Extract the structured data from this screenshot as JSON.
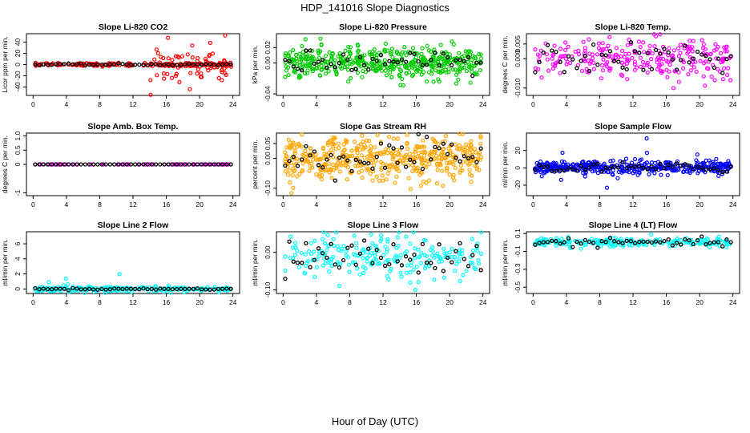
{
  "title": "HDP_141016  Slope Diagnostics",
  "xlabel": "Hour of Day (UTC)",
  "chart_data": [
    {
      "type": "scatter",
      "title": "Slope Li-820 CO2",
      "ylabel": "Licor ppm per min.",
      "yticks": [
        {
          "v": -40,
          "t": "-40"
        },
        {
          "v": -20,
          "t": "-20"
        },
        {
          "v": 0,
          "t": "0"
        },
        {
          "v": 20,
          "t": "20"
        },
        {
          "v": 40,
          "t": "40"
        }
      ],
      "ylim": [
        -55,
        55
      ],
      "color": "#ff0000",
      "center": 0,
      "sd": 1.5,
      "density": 2,
      "spikes": {
        "start": 14,
        "amp": 30,
        "n": 70
      },
      "overlay": {
        "center": 0,
        "sd": 0.8
      }
    },
    {
      "type": "scatter",
      "title": "Slope Li-820 Pressure",
      "ylabel": "kPa per min.",
      "yticks": [
        {
          "v": -0.04,
          "t": "-0.04"
        },
        {
          "v": 0,
          "t": "0.00"
        },
        {
          "v": 0.02,
          "t": "0.02"
        }
      ],
      "ylim": [
        -0.042,
        0.038
      ],
      "color": "#00cc00",
      "center": 0.0,
      "sd": 0.01,
      "density": 6,
      "overlay": {
        "center": 0.0,
        "sd": 0.008
      }
    },
    {
      "type": "scatter",
      "title": "Slope Li-820 Temp.",
      "ylabel": "degrees C per min.",
      "yticks": [
        {
          "v": -0.01,
          "t": "-0.010"
        },
        {
          "v": 0,
          "t": "0.000"
        },
        {
          "v": 0.005,
          "t": "0.005"
        }
      ],
      "ylim": [
        -0.0125,
        0.0085
      ],
      "color": "#ff00ff",
      "center": 0.0,
      "sd": 0.0035,
      "density": 3,
      "overlay": {
        "center": 0.0,
        "sd": 0.0025
      }
    },
    {
      "type": "scatter",
      "title": "Slope Amb. Box Temp.",
      "ylabel": "degrees C per min.",
      "yticks": [
        {
          "v": -1,
          "t": "-1"
        },
        {
          "v": 0,
          "t": "0"
        },
        {
          "v": 0.5,
          "t": "0.5"
        },
        {
          "v": 1,
          "t": "1.0"
        }
      ],
      "ylim": [
        -1.1,
        1.1
      ],
      "color": "#ff00ff",
      "center": 0,
      "sd": 0,
      "density": 0.5,
      "overlay": {
        "center": 0,
        "sd": 0
      }
    },
    {
      "type": "scatter",
      "title": "Slope Gas Stream RH",
      "ylabel": "percent per min.",
      "yticks": [
        {
          "v": -0.1,
          "t": "-0.10"
        },
        {
          "v": 0,
          "t": "0.00"
        },
        {
          "v": 0.05,
          "t": "0.05"
        }
      ],
      "ylim": [
        -0.125,
        0.085
      ],
      "color": "#ffa500",
      "center": 0.0,
      "sd": 0.035,
      "density": 6,
      "overlay": {
        "center": 0.0,
        "sd": 0.03
      }
    },
    {
      "type": "scatter",
      "title": "Slope Sample Flow",
      "ylabel": "ml/min per min.",
      "yticks": [
        {
          "v": -20,
          "t": "-20"
        },
        {
          "v": 0,
          "t": "0"
        },
        {
          "v": 20,
          "t": "20"
        }
      ],
      "ylim": [
        -32,
        40
      ],
      "color": "#0000ff",
      "center": 0,
      "sd": 4,
      "density": 5,
      "spikes": {
        "start": 0,
        "amp": 18,
        "n": 12
      },
      "overlay": {
        "center": 0,
        "sd": 3
      }
    },
    {
      "type": "scatter",
      "title": "Slope Line 2 Flow",
      "ylabel": "ml/min per min.",
      "yticks": [
        {
          "v": 0,
          "t": "0"
        },
        {
          "v": 2,
          "t": "2"
        },
        {
          "v": 4,
          "t": "4"
        },
        {
          "v": 6,
          "t": "6"
        }
      ],
      "ylim": [
        -0.6,
        7.6
      ],
      "color": "#00ffff",
      "center": 0,
      "sd": 0.15,
      "density": 3,
      "spikes": {
        "start": 0,
        "amp": 2.5,
        "n": 10
      },
      "overlay": {
        "center": 0,
        "sd": 0.05
      }
    },
    {
      "type": "scatter",
      "title": "Slope Line 3 Flow",
      "ylabel": "ml/min per min.",
      "yticks": [
        {
          "v": -0.1,
          "t": "-0.10"
        },
        {
          "v": 0,
          "t": "0.00"
        }
      ],
      "ylim": [
        -0.11,
        0.055
      ],
      "color": "#00ffff",
      "center": -0.01,
      "sd": 0.03,
      "density": 2.5,
      "overlay": {
        "center": -0.01,
        "sd": 0.025
      }
    },
    {
      "type": "scatter",
      "title": "Slope Line 4 (LT) Flow",
      "ylabel": "ml/min per min.",
      "yticks": [
        {
          "v": -0.5,
          "t": "-0.5"
        },
        {
          "v": -0.3,
          "t": "-0.3"
        },
        {
          "v": -0.1,
          "t": "-0.1"
        },
        {
          "v": 0.1,
          "t": "0.1"
        }
      ],
      "ylim": [
        -0.57,
        0.12
      ],
      "color": "#00ffff",
      "center": 0.0,
      "sd": 0.025,
      "density": 2.5,
      "overlay": {
        "center": 0.0,
        "sd": 0.02
      }
    }
  ],
  "xticks": [
    0,
    4,
    8,
    12,
    16,
    20,
    24
  ],
  "xlim": [
    -0.8,
    24.8
  ],
  "overlay_color": "#000000"
}
